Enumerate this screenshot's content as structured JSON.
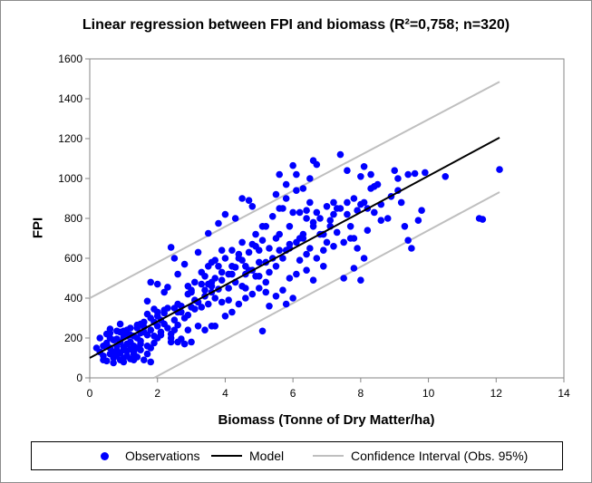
{
  "chart_data": {
    "type": "scatter",
    "title": "Linear regression between FPI and biomass (R²=0,758; n=320)",
    "xlabel": "Biomass (Tonne of Dry Matter/ha)",
    "ylabel": "FPI",
    "xlim": [
      0,
      14
    ],
    "ylim": [
      0,
      1600
    ],
    "xticks": [
      "0",
      "2",
      "4",
      "6",
      "8",
      "10",
      "12",
      "14"
    ],
    "yticks": [
      "0",
      "200",
      "400",
      "600",
      "800",
      "1000",
      "1200",
      "1400",
      "1600"
    ],
    "grid": "none",
    "legend_position": "bottom",
    "legend": {
      "observations": "Observations",
      "model": "Model",
      "ci": "Confidence Interval (Obs. 95%)"
    },
    "colors": {
      "observations": "#0000ff",
      "model": "#000000",
      "ci": "#bfbfbf"
    },
    "model_line": {
      "x": [
        0,
        12.1
      ],
      "y": [
        100,
        1205
      ]
    },
    "ci_upper": {
      "x": [
        0,
        12.1
      ],
      "y": [
        400,
        1485
      ]
    },
    "ci_lower": {
      "x": [
        1.9,
        12.1
      ],
      "y": [
        0,
        932
      ]
    },
    "points": [
      [
        0.2,
        150
      ],
      [
        0.3,
        130
      ],
      [
        0.4,
        160
      ],
      [
        0.5,
        85
      ],
      [
        0.6,
        120
      ],
      [
        0.7,
        100
      ],
      [
        0.8,
        140
      ],
      [
        0.9,
        90
      ],
      [
        1.0,
        80
      ],
      [
        1.1,
        110
      ],
      [
        1.2,
        95
      ],
      [
        1.3,
        130
      ],
      [
        1.4,
        105
      ],
      [
        1.6,
        90
      ],
      [
        1.8,
        80
      ],
      [
        0.3,
        200
      ],
      [
        0.5,
        220
      ],
      [
        0.6,
        245
      ],
      [
        0.8,
        235
      ],
      [
        1.0,
        205
      ],
      [
        1.2,
        250
      ],
      [
        1.4,
        265
      ],
      [
        1.6,
        255
      ],
      [
        1.8,
        300
      ],
      [
        2.0,
        260
      ],
      [
        0.5,
        175
      ],
      [
        0.7,
        190
      ],
      [
        0.9,
        180
      ],
      [
        1.1,
        170
      ],
      [
        1.3,
        160
      ],
      [
        1.5,
        185
      ],
      [
        1.7,
        215
      ],
      [
        0.4,
        110
      ],
      [
        0.6,
        150
      ],
      [
        0.8,
        160
      ],
      [
        1.0,
        155
      ],
      [
        1.2,
        145
      ],
      [
        1.4,
        200
      ],
      [
        1.6,
        230
      ],
      [
        1.8,
        240
      ],
      [
        0.7,
        75
      ],
      [
        0.9,
        125
      ],
      [
        1.1,
        135
      ],
      [
        1.3,
        120
      ],
      [
        1.5,
        140
      ],
      [
        1.7,
        160
      ],
      [
        1.9,
        175
      ],
      [
        2.1,
        215
      ],
      [
        0.6,
        225
      ],
      [
        1.0,
        235
      ],
      [
        1.2,
        215
      ],
      [
        1.5,
        270
      ],
      [
        1.7,
        320
      ],
      [
        1.9,
        345
      ],
      [
        2.1,
        290
      ],
      [
        1.7,
        385
      ],
      [
        1.8,
        480
      ],
      [
        2.0,
        470
      ],
      [
        2.3,
        455
      ],
      [
        2.5,
        290
      ],
      [
        2.7,
        360
      ],
      [
        3.0,
        355
      ],
      [
        2.2,
        430
      ],
      [
        2.6,
        520
      ],
      [
        2.8,
        570
      ],
      [
        2.4,
        655
      ],
      [
        2.5,
        600
      ],
      [
        3.0,
        440
      ],
      [
        2.3,
        250
      ],
      [
        2.4,
        220
      ],
      [
        2.6,
        180
      ],
      [
        2.8,
        170
      ],
      [
        3.0,
        180
      ],
      [
        2.2,
        340
      ],
      [
        2.5,
        350
      ],
      [
        2.7,
        330
      ],
      [
        2.9,
        315
      ],
      [
        3.1,
        345
      ],
      [
        3.3,
        355
      ],
      [
        3.5,
        370
      ],
      [
        2.4,
        200
      ],
      [
        2.6,
        265
      ],
      [
        2.9,
        240
      ],
      [
        3.2,
        380
      ],
      [
        3.4,
        410
      ],
      [
        3.6,
        430
      ],
      [
        3.8,
        445
      ],
      [
        3.3,
        530
      ],
      [
        3.5,
        560
      ],
      [
        3.7,
        590
      ],
      [
        3.9,
        640
      ],
      [
        3.5,
        725
      ],
      [
        3.8,
        775
      ],
      [
        3.2,
        630
      ],
      [
        3.6,
        480
      ],
      [
        3.9,
        490
      ],
      [
        4.1,
        520
      ],
      [
        4.3,
        555
      ],
      [
        4.5,
        590
      ],
      [
        4.7,
        630
      ],
      [
        4.9,
        660
      ],
      [
        5.1,
        690
      ],
      [
        4.0,
        820
      ],
      [
        4.3,
        800
      ],
      [
        4.5,
        900
      ],
      [
        4.7,
        890
      ],
      [
        4.8,
        860
      ],
      [
        4.2,
        640
      ],
      [
        4.4,
        620
      ],
      [
        4.6,
        560
      ],
      [
        4.8,
        540
      ],
      [
        5.0,
        510
      ],
      [
        5.2,
        480
      ],
      [
        3.7,
        260
      ],
      [
        4.0,
        310
      ],
      [
        4.2,
        330
      ],
      [
        4.4,
        370
      ],
      [
        4.6,
        400
      ],
      [
        4.8,
        420
      ],
      [
        5.0,
        450
      ],
      [
        5.2,
        430
      ],
      [
        3.4,
        240
      ],
      [
        3.6,
        260
      ],
      [
        5.1,
        235
      ],
      [
        5.3,
        360
      ],
      [
        5.5,
        410
      ],
      [
        5.7,
        440
      ],
      [
        5.9,
        500
      ],
      [
        6.1,
        520
      ],
      [
        5.3,
        530
      ],
      [
        5.5,
        560
      ],
      [
        5.7,
        600
      ],
      [
        5.9,
        650
      ],
      [
        6.1,
        680
      ],
      [
        6.3,
        700
      ],
      [
        5.4,
        810
      ],
      [
        5.6,
        850
      ],
      [
        5.8,
        900
      ],
      [
        5.5,
        920
      ],
      [
        5.8,
        970
      ],
      [
        5.6,
        1020
      ],
      [
        6.0,
        1065
      ],
      [
        6.1,
        1020
      ],
      [
        6.3,
        950
      ],
      [
        6.5,
        1000
      ],
      [
        6.6,
        1090
      ],
      [
        6.7,
        1070
      ],
      [
        6.2,
        830
      ],
      [
        6.4,
        800
      ],
      [
        6.6,
        760
      ],
      [
        6.8,
        720
      ],
      [
        7.0,
        680
      ],
      [
        6.5,
        650
      ],
      [
        6.7,
        600
      ],
      [
        6.9,
        560
      ],
      [
        6.4,
        540
      ],
      [
        6.6,
        490
      ],
      [
        5.8,
        370
      ],
      [
        6.0,
        400
      ],
      [
        6.2,
        590
      ],
      [
        6.4,
        620
      ],
      [
        7.0,
        860
      ],
      [
        7.2,
        820
      ],
      [
        7.4,
        850
      ],
      [
        7.6,
        880
      ],
      [
        7.8,
        900
      ],
      [
        7.3,
        730
      ],
      [
        7.5,
        680
      ],
      [
        7.7,
        700
      ],
      [
        7.9,
        650
      ],
      [
        8.1,
        600
      ],
      [
        7.4,
        1120
      ],
      [
        7.6,
        1040
      ],
      [
        8.0,
        1010
      ],
      [
        8.1,
        1060
      ],
      [
        8.3,
        1020
      ],
      [
        8.5,
        970
      ],
      [
        8.0,
        870
      ],
      [
        8.2,
        850
      ],
      [
        8.4,
        830
      ],
      [
        8.6,
        790
      ],
      [
        7.8,
        550
      ],
      [
        8.0,
        490
      ],
      [
        8.2,
        740
      ],
      [
        7.2,
        660
      ],
      [
        7.5,
        500
      ],
      [
        9.0,
        1040
      ],
      [
        9.1,
        1000
      ],
      [
        9.4,
        1020
      ],
      [
        9.6,
        1025
      ],
      [
        9.9,
        1030
      ],
      [
        9.1,
        940
      ],
      [
        9.3,
        760
      ],
      [
        9.4,
        690
      ],
      [
        9.5,
        650
      ],
      [
        9.7,
        790
      ],
      [
        9.8,
        840
      ],
      [
        10.5,
        1010
      ],
      [
        11.5,
        800
      ],
      [
        11.6,
        795
      ],
      [
        12.1,
        1045
      ],
      [
        1.0,
        100
      ],
      [
        1.3,
        90
      ],
      [
        2.0,
        310
      ],
      [
        2.2,
        325
      ],
      [
        2.8,
        300
      ],
      [
        3.1,
        390
      ],
      [
        3.4,
        510
      ],
      [
        3.9,
        380
      ],
      [
        4.1,
        450
      ],
      [
        4.5,
        460
      ],
      [
        4.9,
        510
      ],
      [
        5.2,
        580
      ],
      [
        5.6,
        640
      ],
      [
        6.3,
        720
      ],
      [
        6.9,
        640
      ],
      [
        7.1,
        790
      ],
      [
        7.7,
        760
      ],
      [
        8.3,
        950
      ],
      [
        8.9,
        910
      ],
      [
        6.1,
        940
      ],
      [
        5.7,
        850
      ],
      [
        5.2,
        760
      ],
      [
        4.9,
        720
      ],
      [
        4.5,
        680
      ],
      [
        4.2,
        560
      ],
      [
        3.7,
        500
      ],
      [
        3.3,
        470
      ],
      [
        2.9,
        420
      ],
      [
        2.6,
        370
      ],
      [
        2.3,
        350
      ],
      [
        2.0,
        330
      ],
      [
        1.6,
        280
      ],
      [
        1.4,
        250
      ],
      [
        1.1,
        210
      ],
      [
        0.8,
        195
      ],
      [
        0.5,
        165
      ],
      [
        0.9,
        270
      ],
      [
        1.5,
        225
      ],
      [
        2.2,
        270
      ],
      [
        2.7,
        195
      ],
      [
        3.2,
        260
      ],
      [
        3.7,
        400
      ],
      [
        4.1,
        390
      ],
      [
        4.6,
        450
      ],
      [
        5.0,
        580
      ],
      [
        5.4,
        600
      ],
      [
        5.9,
        760
      ],
      [
        6.4,
        840
      ],
      [
        6.8,
        800
      ],
      [
        7.3,
        850
      ],
      [
        7.9,
        840
      ],
      [
        8.6,
        870
      ],
      [
        9.2,
        880
      ],
      [
        6.0,
        830
      ],
      [
        6.5,
        880
      ],
      [
        5.1,
        760
      ],
      [
        4.4,
        600
      ],
      [
        3.8,
        560
      ],
      [
        3.0,
        430
      ],
      [
        2.5,
        240
      ],
      [
        1.9,
        210
      ],
      [
        1.2,
        180
      ],
      [
        0.7,
        130
      ],
      [
        0.4,
        90
      ],
      [
        1.8,
        150
      ],
      [
        2.4,
        180
      ],
      [
        3.5,
        470
      ],
      [
        4.3,
        480
      ],
      [
        5.3,
        650
      ],
      [
        6.2,
        700
      ],
      [
        7.1,
        760
      ],
      [
        7.6,
        820
      ],
      [
        8.4,
        960
      ],
      [
        8.8,
        800
      ],
      [
        5.6,
        720
      ],
      [
        4.7,
        540
      ],
      [
        3.9,
        530
      ],
      [
        3.1,
        480
      ],
      [
        2.1,
        230
      ],
      [
        1.7,
        120
      ],
      [
        1.3,
        210
      ],
      [
        0.9,
        230
      ],
      [
        0.6,
        200
      ],
      [
        1.1,
        240
      ],
      [
        2.9,
        460
      ],
      [
        3.6,
        580
      ],
      [
        4.0,
        600
      ],
      [
        4.8,
        670
      ],
      [
        5.5,
        700
      ],
      [
        6.7,
        830
      ],
      [
        7.2,
        880
      ],
      [
        7.8,
        700
      ],
      [
        6.9,
        720
      ],
      [
        5.9,
        670
      ],
      [
        5.0,
        640
      ],
      [
        4.2,
        520
      ],
      [
        3.4,
        440
      ],
      [
        2.6,
        330
      ],
      [
        1.9,
        280
      ],
      [
        1.5,
        170
      ],
      [
        1.0,
        140
      ],
      [
        0.8,
        110
      ],
      [
        1.4,
        150
      ],
      [
        2.0,
        200
      ],
      [
        3.6,
        460
      ],
      [
        4.6,
        520
      ],
      [
        5.8,
        640
      ],
      [
        6.6,
        780
      ],
      [
        8.1,
        880
      ]
    ]
  }
}
